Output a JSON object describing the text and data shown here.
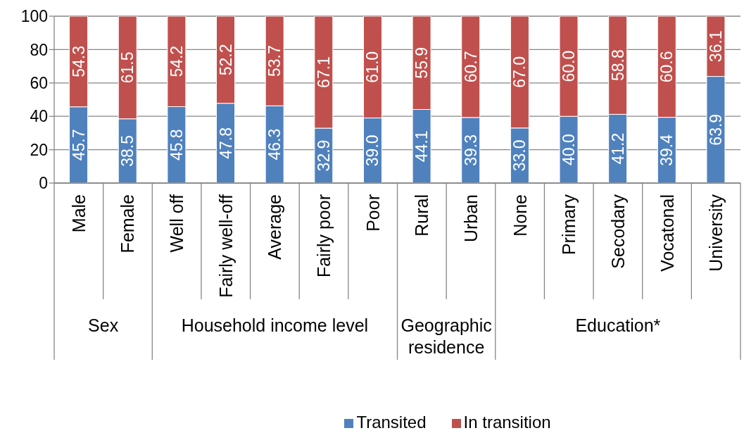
{
  "chart_data": {
    "type": "bar",
    "stacked": true,
    "categories": [
      "Male",
      "Female",
      "Well off",
      "Fairly well-off",
      "Average",
      "Fairly poor",
      "Poor",
      "Rural",
      "Urban",
      "None",
      "Primary",
      "Secodary",
      "Vocatonal",
      "University"
    ],
    "series": [
      {
        "name": "Transited",
        "color": "#4f81bd",
        "values": [
          45.7,
          38.5,
          45.8,
          47.8,
          46.3,
          32.9,
          39.0,
          44.1,
          39.3,
          33.0,
          40.0,
          41.2,
          39.4,
          63.9
        ],
        "value_labels": [
          "45.7",
          "38.5",
          "45.8",
          "47.8",
          "46.3",
          "32.9",
          "39.0",
          "44.1",
          "39.3",
          "33.0",
          "40.0",
          "41.2",
          "39.4",
          "63.9"
        ]
      },
      {
        "name": "In transition",
        "color": "#c0504d",
        "values": [
          54.3,
          61.5,
          54.2,
          52.2,
          53.7,
          67.1,
          61.0,
          55.9,
          60.7,
          67.0,
          60.0,
          58.8,
          60.6,
          36.1
        ],
        "value_labels": [
          "54.3",
          "61.5",
          "54.2",
          "52.2",
          "53.7",
          "67.1",
          "61.0",
          "55.9",
          "60.7",
          "67.0",
          "60.0",
          "58.8",
          "60.6",
          "36.1"
        ]
      }
    ],
    "ylim": [
      0,
      100
    ],
    "yticks": [
      0,
      20,
      40,
      60,
      80,
      100
    ],
    "grid": "y",
    "legend": "bottom",
    "annotations": [
      "Sex",
      "Household income level",
      "Geographic residence",
      "Education*"
    ]
  }
}
